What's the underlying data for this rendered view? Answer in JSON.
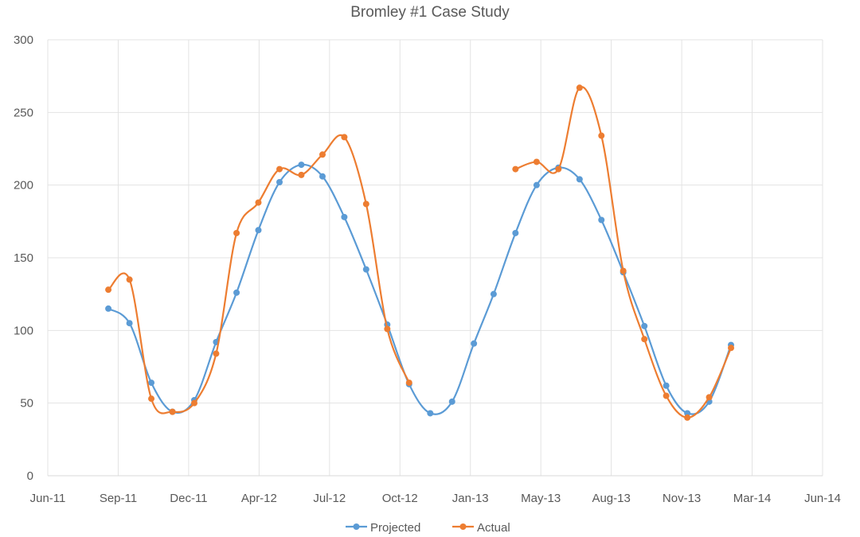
{
  "chart_data": {
    "type": "line",
    "title": "Bromley #1 Case Study",
    "xlabel": "",
    "ylabel": "",
    "ylim": [
      0,
      300
    ],
    "yticks": [
      0,
      50,
      100,
      150,
      200,
      250,
      300
    ],
    "xlim": [
      "2011-06-07",
      "2014-06-11"
    ],
    "xtick_labels": [
      "Jun-11",
      "Sep-11",
      "Dec-11",
      "Apr-12",
      "Jul-12",
      "Oct-12",
      "Jan-13",
      "May-13",
      "Aug-13",
      "Nov-13",
      "Mar-14",
      "Jun-14"
    ],
    "grid": true,
    "smoothed": true,
    "markers": true,
    "legend_position": "bottom",
    "x": [
      "2011-09",
      "2011-10",
      "2011-11",
      "2011-12",
      "2012-01",
      "2012-02",
      "2012-03",
      "2012-04",
      "2012-05",
      "2012-06",
      "2012-07",
      "2012-08",
      "2012-09",
      "2012-10",
      "2012-11",
      "2012-12",
      "2013-01",
      "2013-02",
      "2013-03",
      "2013-04",
      "2013-05",
      "2013-06",
      "2013-07",
      "2013-08",
      "2013-09",
      "2013-10",
      "2013-11",
      "2013-12",
      "2014-01",
      "2014-02"
    ],
    "series": [
      {
        "name": "Projected",
        "color": "#5B9BD5",
        "values": [
          115,
          105,
          64,
          44,
          52,
          92,
          126,
          169,
          202,
          214,
          206,
          178,
          142,
          104,
          63,
          43,
          51,
          91,
          125,
          167,
          200,
          212,
          204,
          176,
          140,
          103,
          62,
          43,
          51,
          90
        ]
      },
      {
        "name": "Actual",
        "color": "#ED7D31",
        "values": [
          128,
          135,
          53,
          44,
          50,
          84,
          167,
          188,
          211,
          207,
          221,
          233,
          187,
          101,
          64,
          null,
          null,
          null,
          null,
          211,
          216,
          211,
          267,
          234,
          141,
          94,
          55,
          40,
          54,
          88
        ]
      }
    ]
  }
}
